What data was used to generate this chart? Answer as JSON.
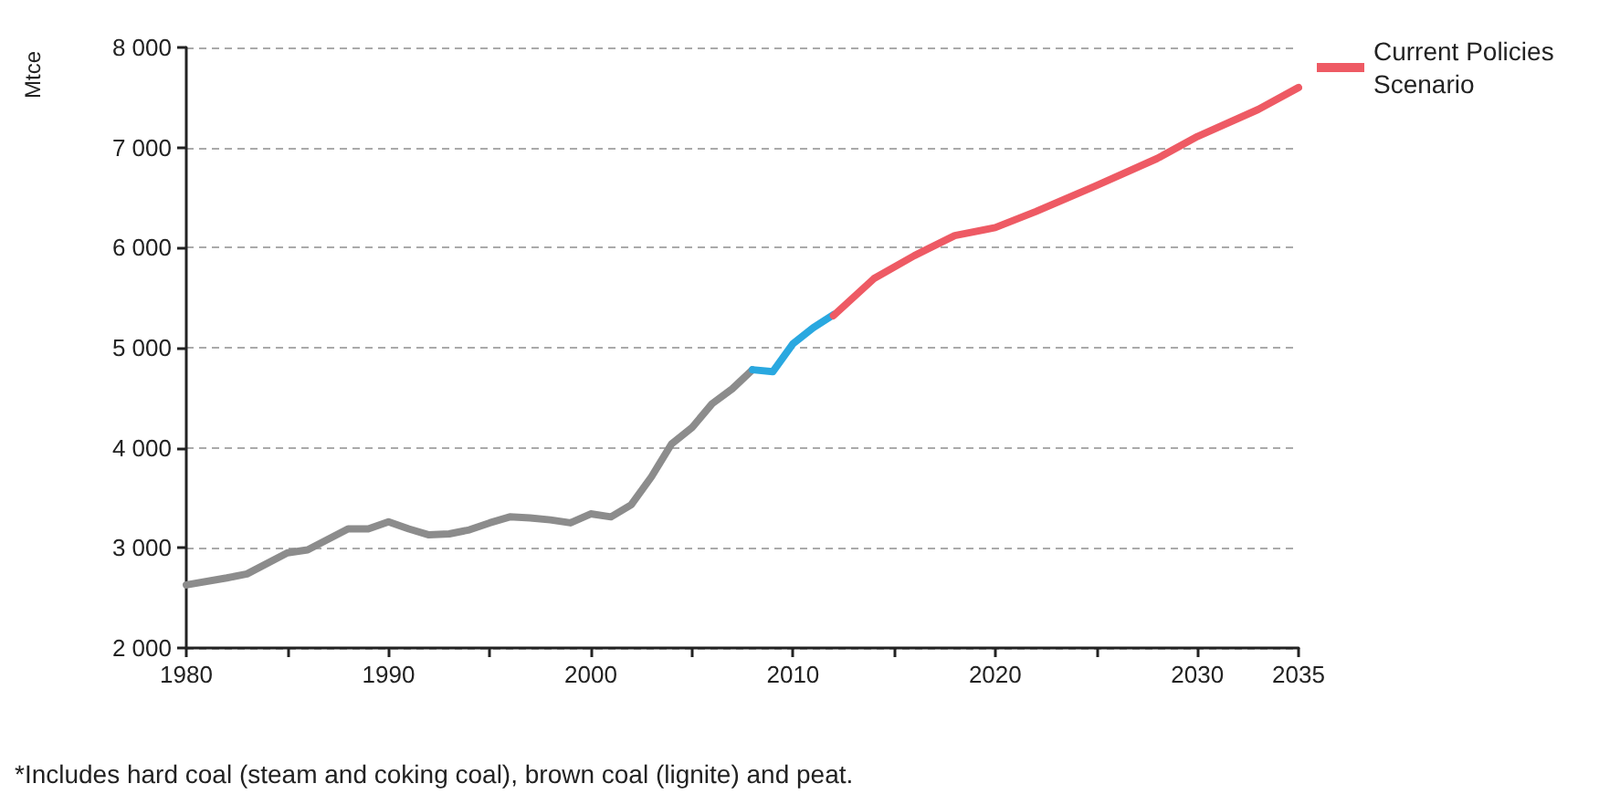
{
  "chart_data": {
    "type": "line",
    "ylabel": "Mtce",
    "annotations": [
      "*Includes hard coal (steam and coking coal), brown coal (lignite) and peat."
    ],
    "xlim": [
      1980,
      2035
    ],
    "xticks": [
      1980,
      {
        "value": 1985,
        "label": null
      },
      1990,
      {
        "value": 1995,
        "label": null
      },
      2000,
      {
        "value": 2005,
        "label": null
      },
      2010,
      {
        "value": 2015,
        "label": null
      },
      2020,
      {
        "value": 2025,
        "label": null
      },
      2030,
      2035
    ],
    "ylim": [
      2000,
      8000
    ],
    "yticks": [
      {
        "value": 2000,
        "label": "2 000"
      },
      {
        "value": 3000,
        "label": "3 000"
      },
      {
        "value": 4000,
        "label": "4 000"
      },
      {
        "value": 5000,
        "label": "5 000"
      },
      {
        "value": 6000,
        "label": "6 000"
      },
      {
        "value": 7000,
        "label": "7 000"
      },
      {
        "value": 8000,
        "label": "8 000"
      }
    ],
    "grid": "y",
    "legend": "top right",
    "marker": "none",
    "line_style": "solid",
    "series": [
      {
        "color": "#8c8c8c",
        "x": [
          1980,
          1982,
          1983,
          1985,
          1986,
          1988,
          1989,
          1990,
          1991,
          1992,
          1993,
          1994,
          1995,
          1996,
          1997,
          1998,
          1999,
          2000,
          2001,
          2002,
          2003,
          2004,
          2005,
          2006,
          2007,
          2008
        ],
        "values": [
          2630,
          2700,
          2740,
          2950,
          2980,
          3190,
          3190,
          3260,
          3190,
          3130,
          3140,
          3180,
          3250,
          3310,
          3300,
          3280,
          3250,
          3340,
          3310,
          3430,
          3710,
          4040,
          4200,
          4440,
          4590,
          4780
        ]
      },
      {
        "color": "#29a8e0",
        "x": [
          2008,
          2009,
          2010,
          2011,
          2012
        ],
        "values": [
          4780,
          4760,
          5040,
          5200,
          5330
        ]
      },
      {
        "name": "Current Policies Scenario",
        "color": "#ee5a64",
        "x": [
          2012,
          2014,
          2016,
          2018,
          2020,
          2022,
          2025,
          2028,
          2030,
          2033,
          2035
        ],
        "values": [
          5320,
          5690,
          5920,
          6120,
          6200,
          6360,
          6620,
          6890,
          7110,
          7380,
          7600
        ]
      }
    ]
  }
}
